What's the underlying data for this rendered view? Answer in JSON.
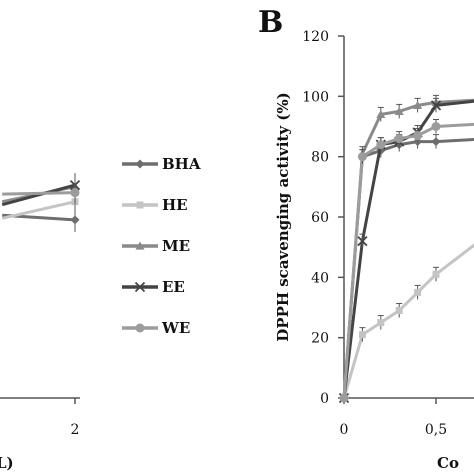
{
  "chart_data": [
    {
      "panel": "A",
      "type": "line",
      "panel_label": "",
      "x_visible_ticks": [
        "2"
      ],
      "xlabel_partial": "L)",
      "visible_x_values": [
        0.6,
        2
      ],
      "series": [
        {
          "name": "BHA",
          "color": "#6e6e6e",
          "marker": "diamond",
          "points": [
            [
              0.6,
              60.5
            ],
            [
              2,
              59.0
            ]
          ]
        },
        {
          "name": "HE",
          "color": "#c4c4c4",
          "marker": "square",
          "points": [
            [
              0.6,
              59.5
            ],
            [
              2,
              65.0
            ]
          ]
        },
        {
          "name": "ME",
          "color": "#8a8a8a",
          "marker": "triangle",
          "points": [
            [
              0.6,
              65.0
            ],
            [
              2,
              70.0
            ]
          ]
        },
        {
          "name": "EE",
          "color": "#444444",
          "marker": "x",
          "points": [
            [
              0.6,
              64.0
            ],
            [
              2,
              70.5
            ]
          ]
        },
        {
          "name": "WE",
          "color": "#9c9c9c",
          "marker": "circle",
          "points": [
            [
              0.6,
              67.5
            ],
            [
              2,
              68.0
            ]
          ]
        }
      ]
    },
    {
      "panel": "B",
      "type": "line",
      "panel_label": "B",
      "ylabel": "DPPH scavenging activity (%)",
      "xlabel_partial": "Co",
      "y_ticks": [
        "120",
        "100",
        "80",
        "60",
        "40",
        "20",
        "0"
      ],
      "x_ticks": [
        "0",
        "0,5"
      ],
      "ylim": [
        0,
        120
      ],
      "xlim_visible": [
        0,
        0.8
      ],
      "series": [
        {
          "name": "BHA",
          "color": "#6e6e6e",
          "marker": "diamond",
          "points": [
            [
              0,
              0
            ],
            [
              0.1,
              80
            ],
            [
              0.2,
              82
            ],
            [
              0.3,
              84
            ],
            [
              0.4,
              85
            ],
            [
              0.5,
              85
            ],
            [
              0.8,
              86
            ]
          ]
        },
        {
          "name": "HE",
          "color": "#c4c4c4",
          "marker": "square",
          "points": [
            [
              0,
              0
            ],
            [
              0.1,
              21
            ],
            [
              0.2,
              25
            ],
            [
              0.3,
              29
            ],
            [
              0.4,
              35
            ],
            [
              0.5,
              41
            ],
            [
              0.8,
              55
            ]
          ]
        },
        {
          "name": "ME",
          "color": "#8a8a8a",
          "marker": "triangle",
          "points": [
            [
              0,
              0
            ],
            [
              0.1,
              81
            ],
            [
              0.2,
              94
            ],
            [
              0.3,
              95
            ],
            [
              0.4,
              97
            ],
            [
              0.5,
              98
            ],
            [
              0.8,
              99
            ]
          ]
        },
        {
          "name": "EE",
          "color": "#444444",
          "marker": "x",
          "points": [
            [
              0,
              0
            ],
            [
              0.1,
              52
            ],
            [
              0.2,
              84
            ],
            [
              0.3,
              85
            ],
            [
              0.4,
              88
            ],
            [
              0.5,
              97
            ],
            [
              0.8,
              99
            ]
          ]
        },
        {
          "name": "WE",
          "color": "#9c9c9c",
          "marker": "circle",
          "points": [
            [
              0,
              0
            ],
            [
              0.1,
              80
            ],
            [
              0.2,
              84
            ],
            [
              0.3,
              86
            ],
            [
              0.4,
              87
            ],
            [
              0.5,
              90
            ],
            [
              0.8,
              91
            ]
          ]
        }
      ]
    }
  ],
  "legend": [
    {
      "name": "BHA",
      "color": "#6e6e6e",
      "marker": "diamond"
    },
    {
      "name": "HE",
      "color": "#c4c4c4",
      "marker": "square"
    },
    {
      "name": "ME",
      "color": "#8a8a8a",
      "marker": "triangle"
    },
    {
      "name": "EE",
      "color": "#444444",
      "marker": "x"
    },
    {
      "name": "WE",
      "color": "#9c9c9c",
      "marker": "circle"
    }
  ]
}
